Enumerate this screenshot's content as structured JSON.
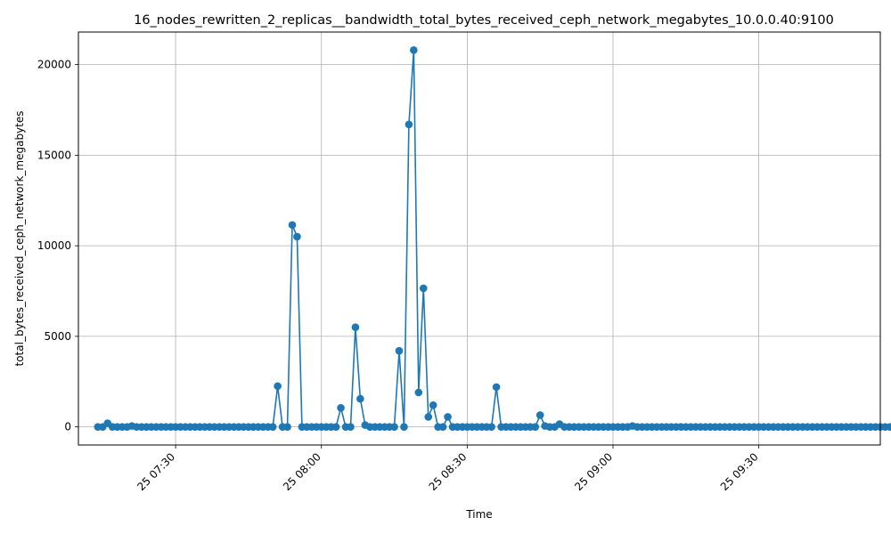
{
  "chart_data": {
    "type": "line",
    "title": "16_nodes_rewritten_2_replicas__bandwidth_total_bytes_received_ceph_network_megabytes_10.0.0.40:9100",
    "xlabel": "Time",
    "ylabel": "total_bytes_received_ceph_network_megabytes",
    "x_ticks": [
      "25 07:30",
      "25 08:00",
      "25 08:30",
      "25 09:00",
      "25 09:30"
    ],
    "y_ticks": [
      0,
      5000,
      10000,
      15000,
      20000
    ],
    "ylim": [
      -1000,
      21800
    ],
    "xlim": [
      "07:10",
      "09:55"
    ],
    "x_start": "07:14",
    "x_step_minutes": 1,
    "grid": true,
    "legend": "none",
    "marker": "circle",
    "color": "#1f77b4",
    "series": [
      {
        "values": [
          0,
          0,
          200,
          0,
          0,
          0,
          0,
          50,
          0,
          0,
          0,
          0,
          0,
          0,
          0,
          0,
          0,
          0,
          0,
          0,
          0,
          0,
          0,
          0,
          0,
          0,
          0,
          0,
          0,
          0,
          0,
          0,
          0,
          0,
          0,
          0,
          0,
          2250,
          0,
          0,
          11150,
          10500,
          0,
          0,
          0,
          0,
          0,
          0,
          0,
          0,
          1050,
          0,
          0,
          5500,
          1550,
          100,
          0,
          0,
          0,
          0,
          0,
          0,
          4200,
          0,
          16700,
          20800,
          1900,
          7650,
          550,
          1200,
          0,
          0,
          550,
          0,
          0,
          0,
          0,
          0,
          0,
          0,
          0,
          0,
          2200,
          0,
          0,
          0,
          0,
          0,
          0,
          0,
          0,
          650,
          50,
          0,
          0,
          150,
          0,
          0,
          0,
          0,
          0,
          0,
          0,
          0,
          0,
          0,
          0,
          0,
          0,
          0,
          50,
          0,
          0,
          0,
          0,
          0,
          0,
          0,
          0,
          0,
          0,
          0,
          0,
          0,
          0,
          0,
          0,
          0,
          0,
          0,
          0,
          0,
          0,
          0,
          0,
          0,
          0,
          0,
          0,
          0,
          0,
          0,
          0,
          0,
          0,
          0,
          0,
          0,
          0,
          0,
          0,
          0,
          0,
          0,
          0,
          0,
          0,
          0,
          0,
          0,
          0,
          0,
          0,
          0,
          0,
          0,
          0
        ]
      }
    ]
  }
}
